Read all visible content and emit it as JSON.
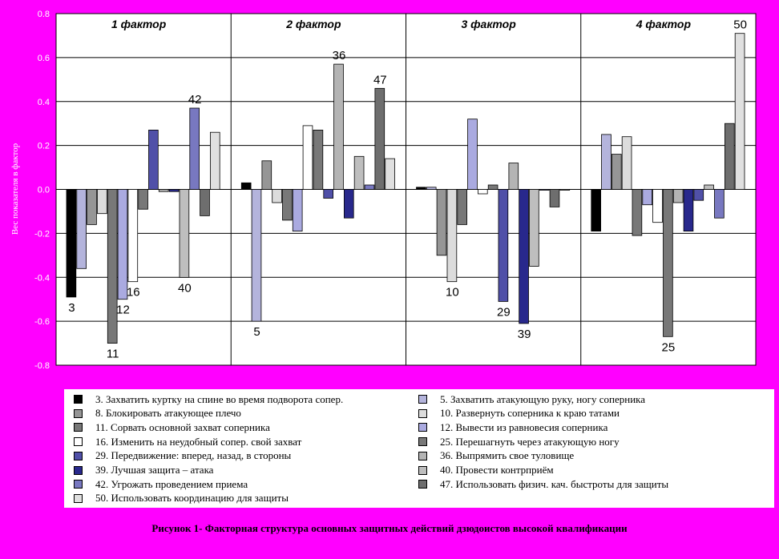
{
  "chart_data": {
    "type": "bar",
    "ylabel": "Вес показателя в фактор",
    "ylim": [
      -0.8,
      0.8
    ],
    "yticks": [
      "0.8",
      "0.6",
      "0.4",
      "0.2",
      "0.0",
      "-0.2",
      "-0.4",
      "-0.6",
      "-0.8"
    ],
    "grid": true,
    "legend_position": "bottom",
    "groups": [
      {
        "title": "1 фактор",
        "bars": [
          {
            "id": 3,
            "value": -0.49,
            "label": "3"
          },
          {
            "id": 5,
            "value": -0.36,
            "label": ""
          },
          {
            "id": 8,
            "value": -0.16,
            "label": ""
          },
          {
            "id": 10,
            "value": -0.11,
            "label": ""
          },
          {
            "id": 11,
            "value": -0.7,
            "label": "11"
          },
          {
            "id": 12,
            "value": -0.5,
            "label": "12"
          },
          {
            "id": 16,
            "value": -0.42,
            "label": "16"
          },
          {
            "id": 25,
            "value": -0.09,
            "label": ""
          },
          {
            "id": 29,
            "value": 0.27,
            "label": ""
          },
          {
            "id": 36,
            "value": -0.01,
            "label": ""
          },
          {
            "id": 39,
            "value": -0.01,
            "label": ""
          },
          {
            "id": 40,
            "value": -0.4,
            "label": "40"
          },
          {
            "id": 42,
            "value": 0.37,
            "label": "42"
          },
          {
            "id": 47,
            "value": -0.12,
            "label": ""
          },
          {
            "id": 50,
            "value": 0.26,
            "label": ""
          }
        ]
      },
      {
        "title": "2 фактор",
        "bars": [
          {
            "id": 3,
            "value": 0.03,
            "label": ""
          },
          {
            "id": 5,
            "value": -0.6,
            "label": "5"
          },
          {
            "id": 8,
            "value": 0.13,
            "label": ""
          },
          {
            "id": 10,
            "value": -0.06,
            "label": ""
          },
          {
            "id": 11,
            "value": -0.14,
            "label": ""
          },
          {
            "id": 12,
            "value": -0.19,
            "label": ""
          },
          {
            "id": 16,
            "value": 0.29,
            "label": ""
          },
          {
            "id": 25,
            "value": 0.27,
            "label": ""
          },
          {
            "id": 29,
            "value": -0.04,
            "label": ""
          },
          {
            "id": 36,
            "value": 0.57,
            "label": "36"
          },
          {
            "id": 39,
            "value": -0.13,
            "label": ""
          },
          {
            "id": 40,
            "value": 0.15,
            "label": ""
          },
          {
            "id": 42,
            "value": 0.02,
            "label": ""
          },
          {
            "id": 47,
            "value": 0.46,
            "label": "47"
          },
          {
            "id": 50,
            "value": 0.14,
            "label": ""
          }
        ]
      },
      {
        "title": "3 фактор",
        "bars": [
          {
            "id": 3,
            "value": 0.01,
            "label": ""
          },
          {
            "id": 5,
            "value": 0.01,
            "label": ""
          },
          {
            "id": 8,
            "value": -0.3,
            "label": ""
          },
          {
            "id": 10,
            "value": -0.42,
            "label": "10"
          },
          {
            "id": 11,
            "value": -0.16,
            "label": ""
          },
          {
            "id": 12,
            "value": 0.32,
            "label": ""
          },
          {
            "id": 16,
            "value": -0.02,
            "label": ""
          },
          {
            "id": 25,
            "value": 0.02,
            "label": ""
          },
          {
            "id": 29,
            "value": -0.51,
            "label": "29"
          },
          {
            "id": 36,
            "value": 0.12,
            "label": ""
          },
          {
            "id": 39,
            "value": -0.61,
            "label": "39"
          },
          {
            "id": 40,
            "value": -0.35,
            "label": ""
          },
          {
            "id": 42,
            "value": 0.0,
            "label": ""
          },
          {
            "id": 47,
            "value": -0.08,
            "label": ""
          },
          {
            "id": 50,
            "value": 0.0,
            "label": ""
          }
        ]
      },
      {
        "title": "4 фактор",
        "bars": [
          {
            "id": 3,
            "value": -0.19,
            "label": ""
          },
          {
            "id": 5,
            "value": 0.25,
            "label": ""
          },
          {
            "id": 8,
            "value": 0.16,
            "label": ""
          },
          {
            "id": 10,
            "value": 0.24,
            "label": ""
          },
          {
            "id": 11,
            "value": -0.21,
            "label": ""
          },
          {
            "id": 12,
            "value": -0.07,
            "label": ""
          },
          {
            "id": 16,
            "value": -0.15,
            "label": ""
          },
          {
            "id": 25,
            "value": -0.67,
            "label": "25"
          },
          {
            "id": 36,
            "value": -0.06,
            "label": ""
          },
          {
            "id": 39,
            "value": -0.19,
            "label": ""
          },
          {
            "id": 29,
            "value": -0.05,
            "label": ""
          },
          {
            "id": 40,
            "value": 0.02,
            "label": ""
          },
          {
            "id": 42,
            "value": -0.13,
            "label": ""
          },
          {
            "id": 47,
            "value": 0.3,
            "label": ""
          },
          {
            "id": 50,
            "value": 0.71,
            "label": "50"
          }
        ]
      }
    ],
    "legend": [
      {
        "id": 3,
        "text": "3. Захватить куртку на спине во время подворота сопер.",
        "color": "#000000"
      },
      {
        "id": 5,
        "text": "5. Захватить атакующую руку, ногу соперника",
        "color": "#b4b4dc"
      },
      {
        "id": 8,
        "text": "8. Блокировать атакующее плечо",
        "color": "#969696"
      },
      {
        "id": 10,
        "text": "10. Развернуть соперника к краю татами",
        "color": "#dcdcdc"
      },
      {
        "id": 11,
        "text": "11. Сорвать основной захват соперника",
        "color": "#787878"
      },
      {
        "id": 12,
        "text": "12. Вывести из равновесия соперника",
        "color": "#aaaae0"
      },
      {
        "id": 16,
        "text": "16. Изменить на неудобный сопер. свой захват",
        "color": "#ffffff"
      },
      {
        "id": 25,
        "text": "25. Перешагнуть через атакующую ногу",
        "color": "#787878"
      },
      {
        "id": 29,
        "text": "29. Передвижение: вперед, назад, в стороны",
        "color": "#5050a8"
      },
      {
        "id": 36,
        "text": "36. Выпрямить свое туловище",
        "color": "#b4b4b4"
      },
      {
        "id": 39,
        "text": "39. Лучшая защита – атака",
        "color": "#28288c"
      },
      {
        "id": 40,
        "text": "40. Провести контрприём",
        "color": "#bebebe"
      },
      {
        "id": 42,
        "text": "42. Угрожать проведением приема",
        "color": "#7878c0"
      },
      {
        "id": 47,
        "text": "47. Использовать физич. кач. быстроты для защиты",
        "color": "#6e6e6e"
      },
      {
        "id": 50,
        "text": "50. Использовать координацию для защиты",
        "color": "#e0e0e0"
      }
    ]
  },
  "caption": "Рисунок 1- Факторная структура основных защитных действий дзюдоистов высокой квалификации",
  "colors": {
    "background": "#ff00ff",
    "plot_area": "#ffffff",
    "gridline": "#000000"
  }
}
